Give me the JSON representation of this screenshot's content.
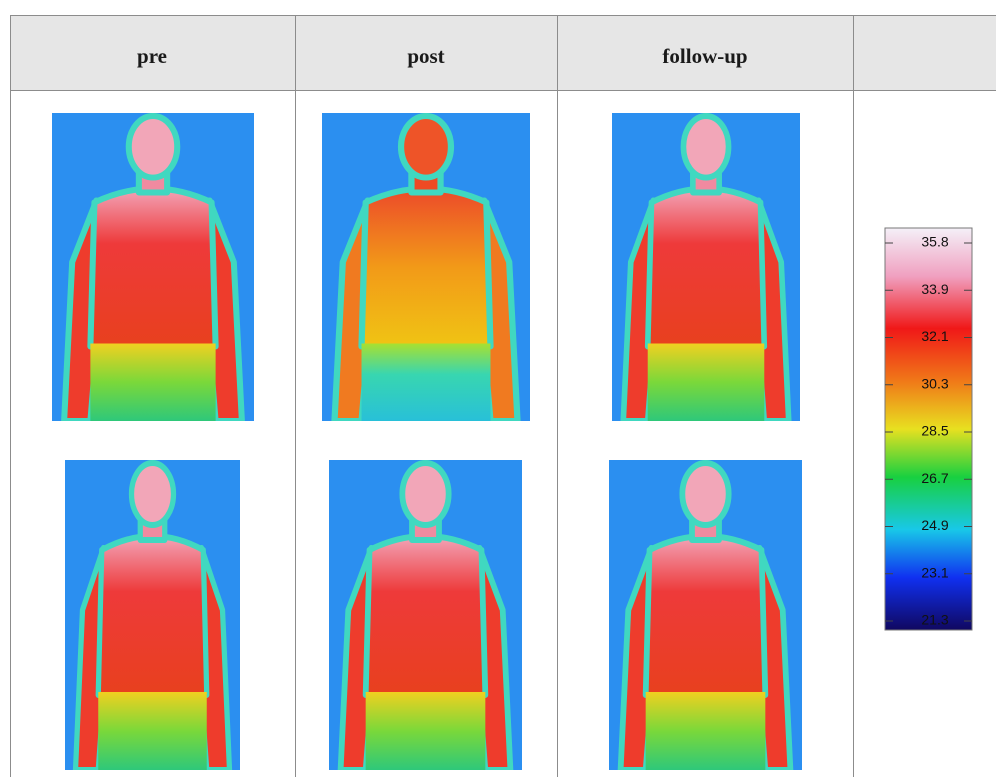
{
  "table": {
    "header": [
      "pre",
      "post",
      "follow-up"
    ]
  },
  "colorbar": {
    "labels": [
      "35.8",
      "33.9",
      "32.1",
      "30.3",
      "28.5",
      "26.7",
      "24.9",
      "23.1",
      "21.3"
    ]
  }
}
